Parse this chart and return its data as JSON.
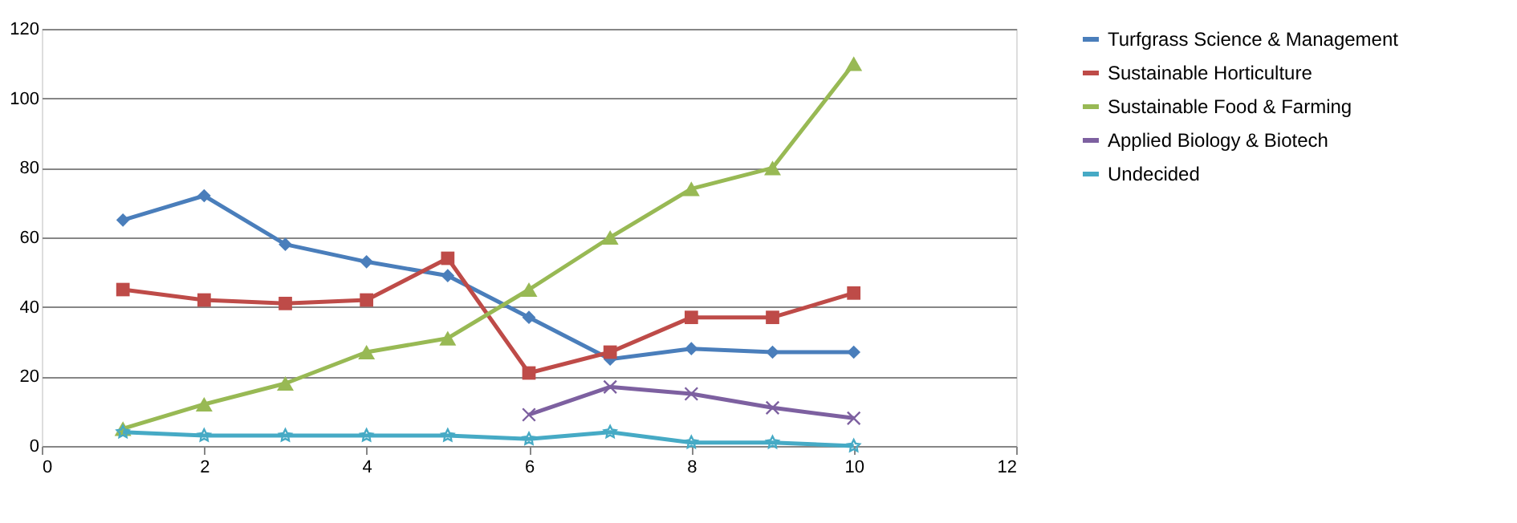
{
  "chart_data": {
    "type": "line",
    "x": [
      1,
      2,
      3,
      4,
      5,
      6,
      7,
      8,
      9,
      10
    ],
    "series": [
      {
        "name": "Turfgrass Science & Management",
        "color": "#4a7ebb",
        "marker": "diamond",
        "values": [
          65,
          72,
          58,
          53,
          49,
          37,
          25,
          28,
          27,
          27
        ]
      },
      {
        "name": "Sustainable Horticulture",
        "color": "#be4b48",
        "marker": "square",
        "values": [
          45,
          42,
          41,
          42,
          54,
          21,
          27,
          37,
          37,
          44
        ]
      },
      {
        "name": "Sustainable Food & Farming",
        "color": "#98b954",
        "marker": "triangle",
        "values": [
          5,
          12,
          18,
          27,
          31,
          45,
          60,
          74,
          80,
          110
        ]
      },
      {
        "name": "Applied Biology & Biotech",
        "color": "#7d60a0",
        "marker": "cross",
        "values": [
          null,
          null,
          null,
          null,
          null,
          9,
          17,
          15,
          11,
          8
        ]
      },
      {
        "name": "Undecided",
        "color": "#46aac5",
        "marker": "star",
        "values": [
          4,
          3,
          3,
          3,
          3,
          2,
          4,
          1,
          1,
          0
        ]
      }
    ],
    "xlim": [
      0,
      12
    ],
    "xticks": [
      0,
      2,
      4,
      6,
      8,
      10,
      12
    ],
    "ylim": [
      0,
      120
    ],
    "yticks": [
      0,
      20,
      40,
      60,
      80,
      100,
      120
    ],
    "grid": "y",
    "legend": "right",
    "line_style": "solid"
  }
}
